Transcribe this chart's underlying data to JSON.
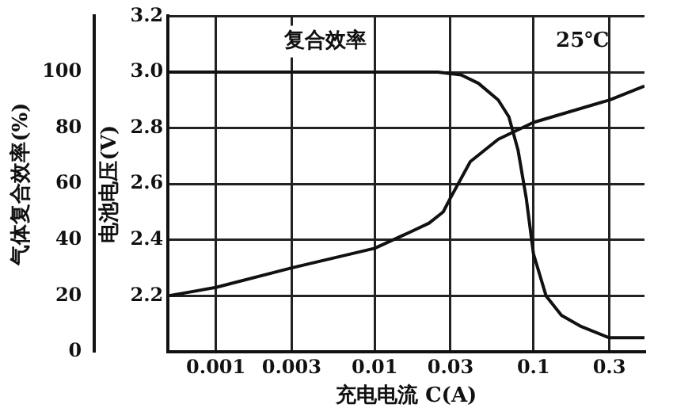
{
  "chart_data": {
    "type": "line",
    "xlabel": "充电电流 C(A)",
    "ylabel": "电池电压(V)",
    "y2label": "气体复合效率(%)",
    "log": "x",
    "grid": true,
    "legend": false,
    "marker": "none",
    "line_style": "solid",
    "xlim": [
      0.0005,
      0.5
    ],
    "xticks": [
      0.001,
      0.003,
      0.01,
      0.03,
      0.1,
      0.3
    ],
    "ylim": [
      2.0,
      3.2
    ],
    "yticks": [
      2.2,
      2.4,
      2.6,
      2.8,
      {
        "value": 3,
        "label": "3.0"
      },
      3.2
    ],
    "y2lim": [
      0,
      120
    ],
    "y2ticks": [
      0,
      20,
      40,
      60,
      80,
      100
    ],
    "annotations": [
      "复合效率",
      "25℃"
    ],
    "series": [
      {
        "color": "#111111",
        "axis": "y2",
        "x": [
          0.0005,
          0.01,
          0.025,
          0.035,
          0.045,
          0.06,
          0.07,
          0.08,
          0.09,
          0.1,
          0.12,
          0.15,
          0.2,
          0.3,
          0.5
        ],
        "values": [
          100,
          100,
          100,
          99,
          96,
          90,
          84,
          72,
          55,
          35,
          20,
          13,
          9,
          5,
          5
        ]
      },
      {
        "color": "#111111",
        "x": [
          0.0005,
          0.001,
          0.003,
          0.01,
          0.017,
          0.022,
          0.027,
          0.03,
          0.04,
          0.06,
          0.1,
          0.3,
          0.5
        ],
        "values": [
          2.2,
          2.23,
          2.3,
          2.37,
          2.43,
          2.46,
          2.5,
          2.55,
          2.68,
          2.76,
          2.82,
          2.9,
          2.95
        ]
      }
    ]
  }
}
